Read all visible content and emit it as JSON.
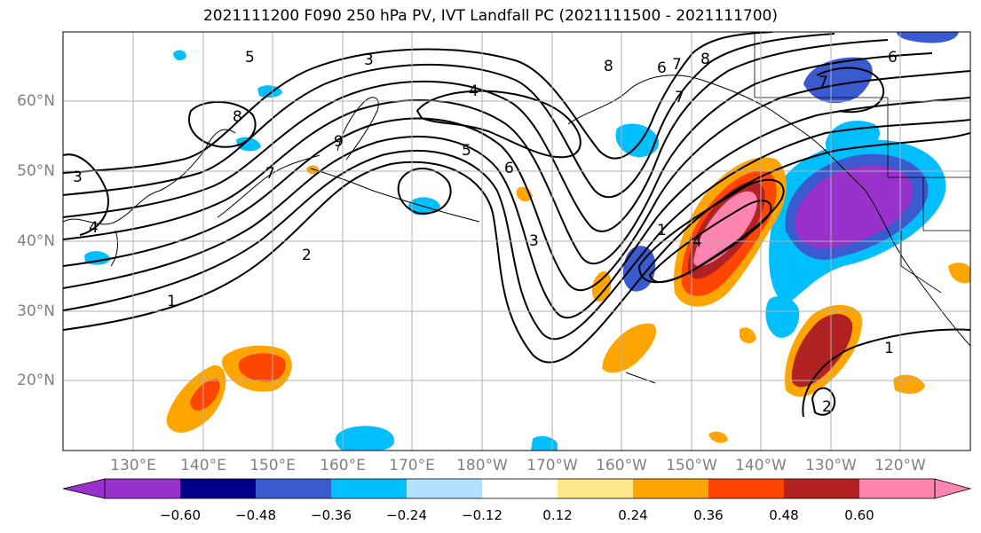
{
  "title": "2021111200 F090 250 hPa PV, IVT Landfall PC (2021111500 - 2021111700)",
  "axes": {
    "lat_labels": [
      "60°N",
      "50°N",
      "40°N",
      "30°N",
      "20°N"
    ],
    "lon_labels": [
      "130°E",
      "140°E",
      "150°E",
      "160°E",
      "170°E",
      "180°W",
      "170°W",
      "160°W",
      "150°W",
      "140°W",
      "130°W",
      "120°W"
    ],
    "lon_range": [
      120,
      250
    ],
    "lat_range": [
      10,
      70
    ],
    "grid": true
  },
  "colorbar": {
    "ticks": [
      "−0.60",
      "−0.48",
      "−0.36",
      "−0.24",
      "−0.12",
      "0.12",
      "0.24",
      "0.36",
      "0.48",
      "0.60"
    ],
    "colors": [
      "#9932cc",
      "#00008b",
      "#3a5ad0",
      "#00bfff",
      "#b0e2ff",
      "#ffffff",
      "#ffe88a",
      "#ffa500",
      "#ff4500",
      "#b22222",
      "#ff85b0"
    ],
    "extend": "both"
  },
  "contour_labels": [
    "5",
    "3",
    "4",
    "8",
    "7",
    "6",
    "7",
    "8",
    "6",
    "7",
    "9",
    "8",
    "7",
    "5",
    "6",
    "2",
    "3",
    "1",
    "4",
    "1",
    "1",
    "2",
    "3",
    "4"
  ],
  "colors": {
    "contour": "#000000",
    "coastline": "#000000",
    "grid": "#b0b0b0",
    "label": "#808080"
  }
}
